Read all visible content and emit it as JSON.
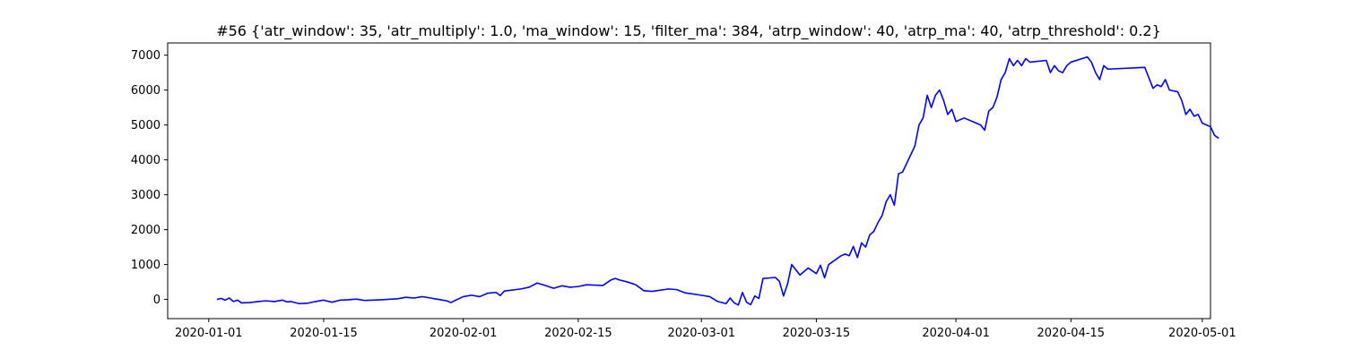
{
  "chart_data": {
    "type": "line",
    "title": "#56 {'atr_window': 35, 'atr_multiply': 1.0, 'ma_window': 15, 'filter_ma': 384, 'atrp_window': 40, 'atrp_ma': 40, 'atrp_threshold': 0.2}",
    "xlabel": "",
    "ylabel": "",
    "grid": false,
    "legend": "none",
    "xlim": [
      "2019-12-27",
      "2020-05-02"
    ],
    "ylim": [
      -550,
      7350
    ],
    "x_ticks": [
      "2020-01-01",
      "2020-01-15",
      "2020-02-01",
      "2020-02-15",
      "2020-03-01",
      "2020-03-15",
      "2020-04-01",
      "2020-04-15",
      "2020-05-01"
    ],
    "y_ticks": [
      0,
      1000,
      2000,
      3000,
      4000,
      5000,
      6000,
      7000
    ],
    "series": [
      {
        "color": "#0000ff",
        "points": [
          [
            "2020-01-02",
            0
          ],
          [
            "2020-01-02 12:00",
            30
          ],
          [
            "2020-01-03",
            -20
          ],
          [
            "2020-01-03 12:00",
            40
          ],
          [
            "2020-01-04",
            -60
          ],
          [
            "2020-01-04 12:00",
            -20
          ],
          [
            "2020-01-05",
            -100
          ],
          [
            "2020-01-06",
            -90
          ],
          [
            "2020-01-07",
            -60
          ],
          [
            "2020-01-08",
            -40
          ],
          [
            "2020-01-09",
            -60
          ],
          [
            "2020-01-10",
            -20
          ],
          [
            "2020-01-10 12:00",
            -70
          ],
          [
            "2020-01-11",
            -60
          ],
          [
            "2020-01-12",
            -120
          ],
          [
            "2020-01-13",
            -110
          ],
          [
            "2020-01-14",
            -60
          ],
          [
            "2020-01-15",
            -20
          ],
          [
            "2020-01-16",
            -80
          ],
          [
            "2020-01-17",
            -20
          ],
          [
            "2020-01-18",
            -10
          ],
          [
            "2020-01-19",
            10
          ],
          [
            "2020-01-20",
            -30
          ],
          [
            "2020-01-21",
            -20
          ],
          [
            "2020-01-22",
            -10
          ],
          [
            "2020-01-24",
            20
          ],
          [
            "2020-01-25",
            60
          ],
          [
            "2020-01-26",
            40
          ],
          [
            "2020-01-27",
            80
          ],
          [
            "2020-01-28",
            40
          ],
          [
            "2020-01-29",
            0
          ],
          [
            "2020-01-30",
            -40
          ],
          [
            "2020-01-30 12:00",
            -90
          ],
          [
            "2020-01-31",
            -30
          ],
          [
            "2020-02-01",
            80
          ],
          [
            "2020-02-02",
            120
          ],
          [
            "2020-02-03",
            80
          ],
          [
            "2020-02-04",
            180
          ],
          [
            "2020-02-05",
            200
          ],
          [
            "2020-02-05 12:00",
            110
          ],
          [
            "2020-02-06",
            240
          ],
          [
            "2020-02-08",
            300
          ],
          [
            "2020-02-09",
            350
          ],
          [
            "2020-02-10",
            470
          ],
          [
            "2020-02-11",
            400
          ],
          [
            "2020-02-12",
            320
          ],
          [
            "2020-02-13",
            390
          ],
          [
            "2020-02-14",
            350
          ],
          [
            "2020-02-15",
            370
          ],
          [
            "2020-02-16",
            420
          ],
          [
            "2020-02-18",
            400
          ],
          [
            "2020-02-19",
            560
          ],
          [
            "2020-02-19 12:00",
            600
          ],
          [
            "2020-02-20",
            560
          ],
          [
            "2020-02-21",
            500
          ],
          [
            "2020-02-22",
            420
          ],
          [
            "2020-02-23",
            250
          ],
          [
            "2020-02-24",
            230
          ],
          [
            "2020-02-26",
            300
          ],
          [
            "2020-02-27",
            280
          ],
          [
            "2020-02-28",
            190
          ],
          [
            "2020-03-01",
            120
          ],
          [
            "2020-03-02",
            80
          ],
          [
            "2020-03-03",
            -60
          ],
          [
            "2020-03-04",
            -120
          ],
          [
            "2020-03-04 12:00",
            40
          ],
          [
            "2020-03-05",
            -100
          ],
          [
            "2020-03-05 12:00",
            -160
          ],
          [
            "2020-03-06",
            200
          ],
          [
            "2020-03-06 12:00",
            -80
          ],
          [
            "2020-03-07",
            -150
          ],
          [
            "2020-03-07 12:00",
            100
          ],
          [
            "2020-03-08",
            30
          ],
          [
            "2020-03-08 12:00",
            600
          ],
          [
            "2020-03-10",
            630
          ],
          [
            "2020-03-10 12:00",
            520
          ],
          [
            "2020-03-11",
            100
          ],
          [
            "2020-03-11 12:00",
            450
          ],
          [
            "2020-03-12",
            1000
          ],
          [
            "2020-03-13",
            700
          ],
          [
            "2020-03-14",
            900
          ],
          [
            "2020-03-15",
            740
          ],
          [
            "2020-03-15 12:00",
            980
          ],
          [
            "2020-03-16",
            620
          ],
          [
            "2020-03-16 12:00",
            1000
          ],
          [
            "2020-03-18",
            1250
          ],
          [
            "2020-03-18 12:00",
            1300
          ],
          [
            "2020-03-19",
            1250
          ],
          [
            "2020-03-19 12:00",
            1520
          ],
          [
            "2020-03-20",
            1200
          ],
          [
            "2020-03-20 12:00",
            1620
          ],
          [
            "2020-03-21",
            1500
          ],
          [
            "2020-03-21 12:00",
            1850
          ],
          [
            "2020-03-22",
            1950
          ],
          [
            "2020-03-22 12:00",
            2200
          ],
          [
            "2020-03-23",
            2400
          ],
          [
            "2020-03-23 12:00",
            2800
          ],
          [
            "2020-03-24",
            3000
          ],
          [
            "2020-03-24 12:00",
            2700
          ],
          [
            "2020-03-25",
            3600
          ],
          [
            "2020-03-25 12:00",
            3650
          ],
          [
            "2020-03-27",
            4400
          ],
          [
            "2020-03-27 12:00",
            5000
          ],
          [
            "2020-03-28",
            5200
          ],
          [
            "2020-03-28 12:00",
            5850
          ],
          [
            "2020-03-29",
            5500
          ],
          [
            "2020-03-29 12:00",
            5850
          ],
          [
            "2020-03-30",
            6000
          ],
          [
            "2020-03-30 12:00",
            5700
          ],
          [
            "2020-03-31",
            5300
          ],
          [
            "2020-03-31 12:00",
            5450
          ],
          [
            "2020-04-01",
            5100
          ],
          [
            "2020-04-02",
            5200
          ],
          [
            "2020-04-04",
            5000
          ],
          [
            "2020-04-04 12:00",
            4850
          ],
          [
            "2020-04-05",
            5400
          ],
          [
            "2020-04-05 12:00",
            5500
          ],
          [
            "2020-04-06",
            5800
          ],
          [
            "2020-04-06 12:00",
            6300
          ],
          [
            "2020-04-07",
            6500
          ],
          [
            "2020-04-07 12:00",
            6900
          ],
          [
            "2020-04-08",
            6700
          ],
          [
            "2020-04-08 12:00",
            6850
          ],
          [
            "2020-04-09",
            6700
          ],
          [
            "2020-04-09 12:00",
            6900
          ],
          [
            "2020-04-10",
            6800
          ],
          [
            "2020-04-12",
            6850
          ],
          [
            "2020-04-12 12:00",
            6500
          ],
          [
            "2020-04-13",
            6700
          ],
          [
            "2020-04-13 12:00",
            6550
          ],
          [
            "2020-04-14",
            6500
          ],
          [
            "2020-04-14 12:00",
            6700
          ],
          [
            "2020-04-15",
            6800
          ],
          [
            "2020-04-17",
            6950
          ],
          [
            "2020-04-17 12:00",
            6800
          ],
          [
            "2020-04-18",
            6500
          ],
          [
            "2020-04-18 12:00",
            6300
          ],
          [
            "2020-04-19",
            6700
          ],
          [
            "2020-04-19 12:00",
            6600
          ],
          [
            "2020-04-24",
            6650
          ],
          [
            "2020-04-24 12:00",
            6350
          ],
          [
            "2020-04-25",
            6050
          ],
          [
            "2020-04-25 12:00",
            6150
          ],
          [
            "2020-04-26",
            6100
          ],
          [
            "2020-04-26 12:00",
            6300
          ],
          [
            "2020-04-27",
            6000
          ],
          [
            "2020-04-28",
            5950
          ],
          [
            "2020-04-28 12:00",
            5700
          ],
          [
            "2020-04-29",
            5300
          ],
          [
            "2020-04-29 12:00",
            5450
          ],
          [
            "2020-04-30",
            5250
          ],
          [
            "2020-04-30 12:00",
            5300
          ],
          [
            "2020-05-01",
            5050
          ],
          [
            "2020-05-01 12:00",
            5000
          ],
          [
            "2020-05-02",
            4950
          ],
          [
            "2020-05-02 12:00",
            4700
          ],
          [
            "2020-05-03",
            4620
          ]
        ]
      }
    ]
  }
}
